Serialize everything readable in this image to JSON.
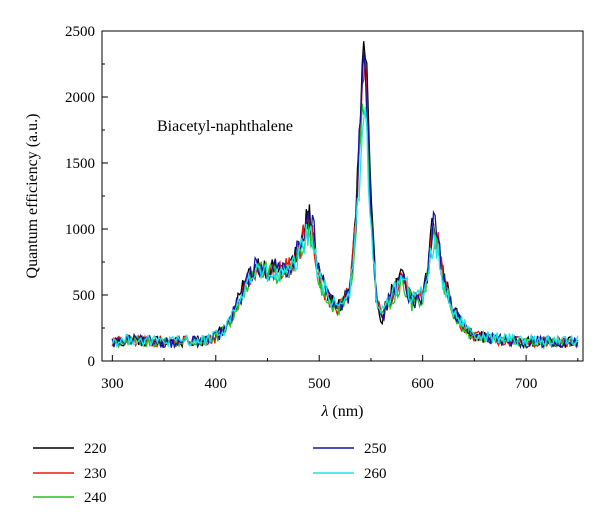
{
  "chart_data": {
    "type": "line",
    "title": "",
    "annotation": "Biacetyl-naphthalene",
    "xlabel_symbol": "λ",
    "xlabel_unit": " (nm)",
    "ylabel": "Quantum efficiency (a.u.)",
    "xlim": [
      290,
      755
    ],
    "ylim": [
      0,
      2500
    ],
    "xticks": [
      300,
      400,
      500,
      600,
      700
    ],
    "yticks": [
      0,
      500,
      1000,
      1500,
      2000,
      2500
    ],
    "grid": false,
    "legend_position": "bottom",
    "x": [
      300,
      310,
      320,
      330,
      340,
      350,
      360,
      370,
      380,
      390,
      400,
      410,
      420,
      430,
      440,
      450,
      460,
      470,
      480,
      485,
      490,
      495,
      500,
      510,
      520,
      530,
      535,
      540,
      543,
      546,
      550,
      555,
      560,
      570,
      580,
      585,
      590,
      600,
      605,
      610,
      615,
      620,
      630,
      640,
      650,
      660,
      670,
      680,
      690,
      700,
      710,
      720,
      730,
      740,
      750
    ],
    "series": [
      {
        "name": "220",
        "color": "#000000",
        "values": [
          150,
          140,
          170,
          150,
          160,
          140,
          150,
          145,
          150,
          160,
          190,
          260,
          420,
          620,
          740,
          700,
          690,
          720,
          820,
          980,
          1120,
          940,
          640,
          460,
          420,
          560,
          1050,
          1900,
          2370,
          2100,
          1150,
          520,
          320,
          520,
          640,
          560,
          450,
          520,
          700,
          1100,
          920,
          640,
          380,
          260,
          200,
          180,
          165,
          160,
          150,
          145,
          150,
          145,
          150,
          140,
          150
        ]
      },
      {
        "name": "230",
        "color": "#e8190c",
        "values": [
          145,
          150,
          160,
          145,
          150,
          150,
          140,
          155,
          145,
          150,
          180,
          250,
          400,
          600,
          720,
          680,
          670,
          700,
          800,
          960,
          1080,
          900,
          620,
          450,
          400,
          540,
          1000,
          1800,
          2200,
          1980,
          1100,
          500,
          310,
          500,
          620,
          540,
          440,
          500,
          680,
          1040,
          880,
          620,
          370,
          250,
          190,
          175,
          160,
          155,
          150,
          140,
          150,
          140,
          145,
          135,
          145
        ]
      },
      {
        "name": "240",
        "color": "#22c41c",
        "values": [
          140,
          145,
          155,
          140,
          145,
          145,
          135,
          150,
          140,
          145,
          175,
          240,
          390,
          580,
          700,
          660,
          650,
          680,
          780,
          940,
          1040,
          860,
          600,
          440,
          390,
          520,
          960,
          1700,
          2050,
          1860,
          1050,
          480,
          300,
          480,
          600,
          520,
          430,
          480,
          660,
          1000,
          860,
          600,
          360,
          240,
          185,
          170,
          155,
          150,
          145,
          135,
          145,
          135,
          140,
          130,
          140
        ]
      },
      {
        "name": "250",
        "color": "#1414a8",
        "values": [
          140,
          150,
          160,
          145,
          150,
          145,
          140,
          150,
          145,
          150,
          180,
          250,
          410,
          610,
          730,
          690,
          690,
          720,
          830,
          1000,
          1150,
          960,
          650,
          460,
          400,
          530,
          1020,
          1850,
          2250,
          2040,
          1120,
          510,
          310,
          500,
          620,
          550,
          440,
          500,
          680,
          1060,
          900,
          630,
          370,
          250,
          195,
          175,
          160,
          155,
          150,
          140,
          150,
          140,
          145,
          135,
          145
        ]
      },
      {
        "name": "260",
        "color": "#19e6e6",
        "values": [
          150,
          155,
          165,
          150,
          155,
          150,
          145,
          155,
          150,
          155,
          185,
          260,
          410,
          590,
          680,
          650,
          640,
          660,
          760,
          900,
          980,
          840,
          620,
          480,
          430,
          540,
          900,
          1500,
          1850,
          1700,
          1000,
          520,
          340,
          520,
          620,
          560,
          460,
          520,
          660,
          920,
          800,
          580,
          380,
          270,
          210,
          190,
          175,
          170,
          165,
          160,
          160,
          155,
          160,
          150,
          160
        ]
      }
    ]
  }
}
